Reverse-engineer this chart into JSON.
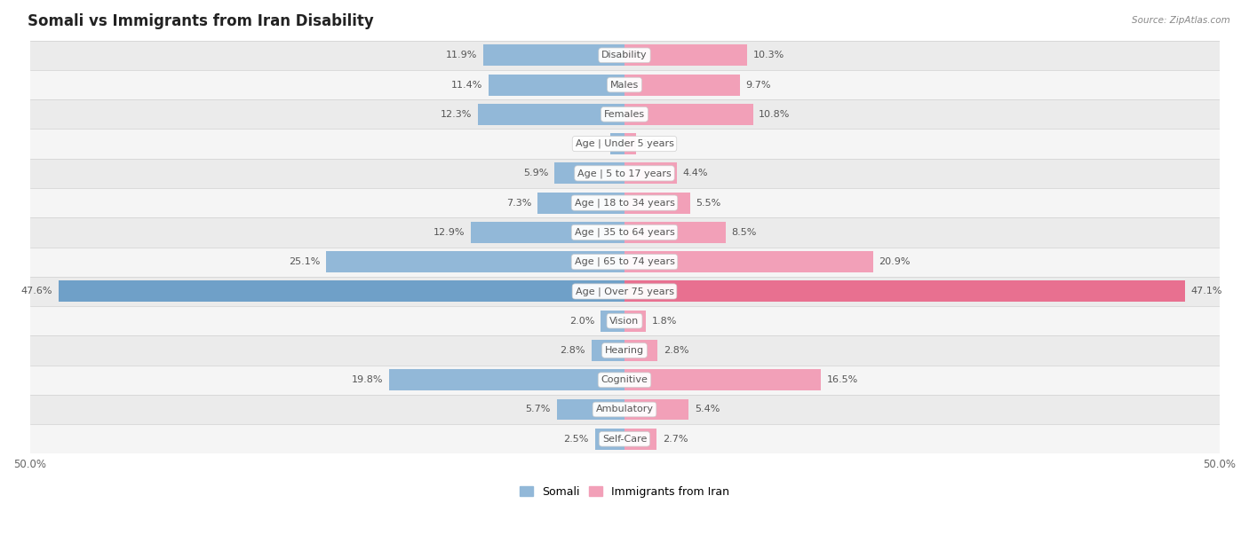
{
  "title": "Somali vs Immigrants from Iran Disability",
  "source": "Source: ZipAtlas.com",
  "categories": [
    "Disability",
    "Males",
    "Females",
    "Age | Under 5 years",
    "Age | 5 to 17 years",
    "Age | 18 to 34 years",
    "Age | 35 to 64 years",
    "Age | 65 to 74 years",
    "Age | Over 75 years",
    "Vision",
    "Hearing",
    "Cognitive",
    "Ambulatory",
    "Self-Care"
  ],
  "somali": [
    11.9,
    11.4,
    12.3,
    1.2,
    5.9,
    7.3,
    12.9,
    25.1,
    47.6,
    2.0,
    2.8,
    19.8,
    5.7,
    2.5
  ],
  "iran": [
    10.3,
    9.7,
    10.8,
    1.0,
    4.4,
    5.5,
    8.5,
    20.9,
    47.1,
    1.8,
    2.8,
    16.5,
    5.4,
    2.7
  ],
  "max_val": 50.0,
  "somali_color": "#92b8d8",
  "somali_color_full": "#6fa0c8",
  "iran_color": "#f2a0b8",
  "iran_color_full": "#e87090",
  "bar_height": 0.72,
  "row_bg_colors": [
    "#ebebeb",
    "#f5f5f5"
  ],
  "title_fontsize": 12,
  "label_fontsize": 8,
  "value_fontsize": 8,
  "tick_fontsize": 8.5,
  "legend_fontsize": 9
}
